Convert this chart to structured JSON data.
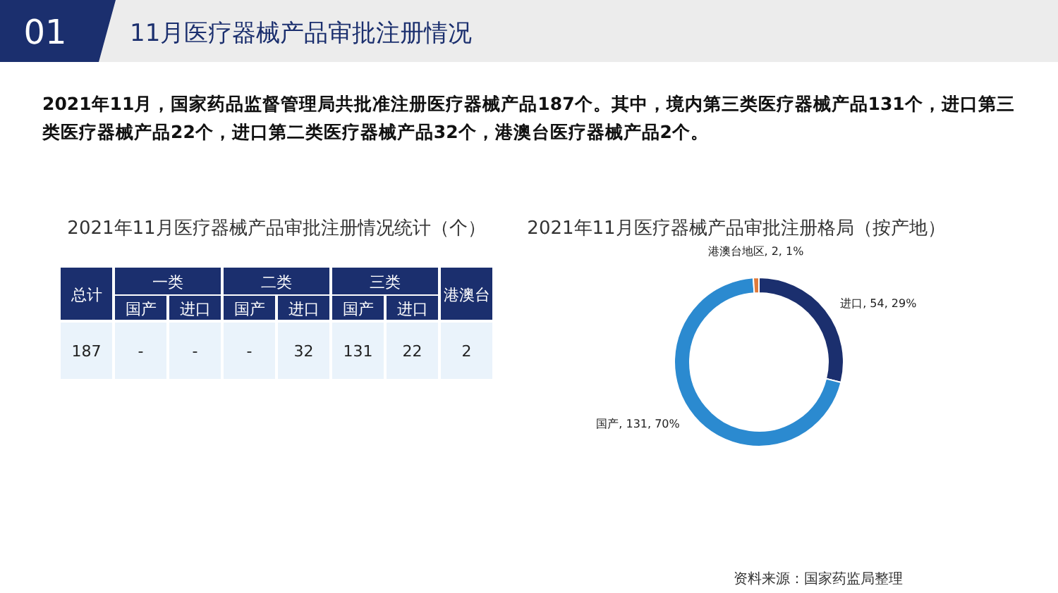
{
  "chart_data": [
    {
      "type": "other",
      "title": "2021年11月医疗器械产品审批注册情况统计（个）",
      "categories": [
        "总计",
        "国产",
        "进口",
        "国产",
        "进口",
        "国产",
        "进口",
        "港澳台"
      ],
      "annotations": [
        "01",
        "11月医疗器械产品审批注册情况",
        "2021年11月，国家药品监督管理局共批准注册医疗器械产品187个。其中，境内第三类医疗器械产品131个，进口第三类医疗器械产品22个，进口第二类医疗器械产品32个，港澳台医疗器械产品2个。",
        "一类",
        "二类",
        "三类",
        "187",
        "-",
        "-",
        "-",
        "32",
        "131",
        "22",
        "2"
      ]
    },
    {
      "type": "donut",
      "title": "2021年11月医疗器械产品审批注册格局（按产地）",
      "categories": [
        "进口",
        "国产",
        "港澳台地区"
      ],
      "values": [
        54,
        131,
        2
      ],
      "colors": [
        "#1b2f6e",
        "#2b8ad0",
        "#e07a3a"
      ],
      "value_labels": [
        "54, 29%",
        "131, 70%",
        "2, 1%"
      ],
      "annotations": [
        "资料来源：国家药监局整理"
      ]
    }
  ]
}
